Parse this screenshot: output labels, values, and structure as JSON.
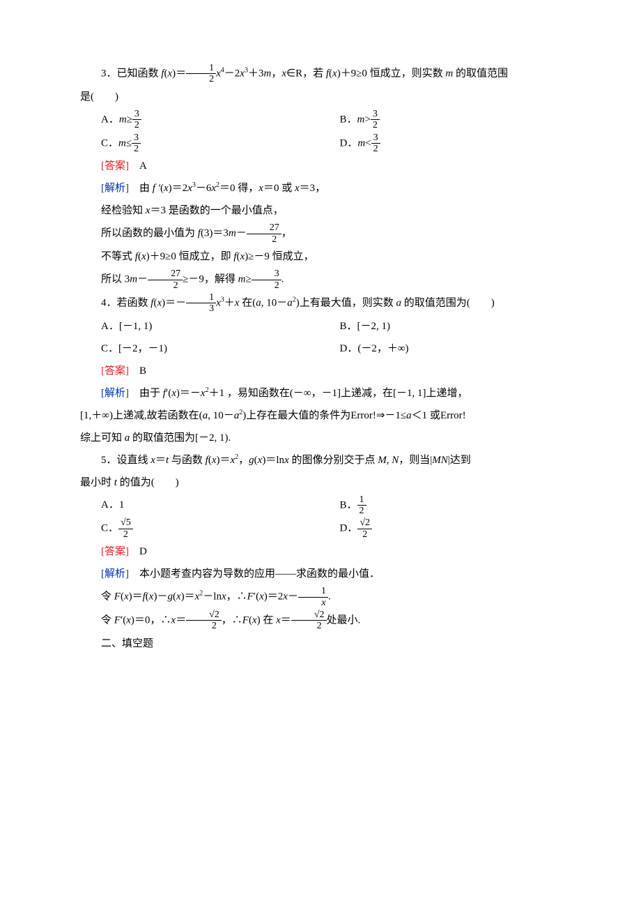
{
  "q3": {
    "stem_a": "3．已知函数 ",
    "stem_b": "f",
    "stem_c": "(",
    "stem_d": "x",
    "stem_e": ")＝",
    "frac1_num": "1",
    "frac1_den": "2",
    "stem_f": "x",
    "sup1": "4",
    "stem_g": "－2",
    "stem_h": "x",
    "sup2": "3",
    "stem_i": "＋3",
    "stem_j": "m",
    "stem_k": "，",
    "stem_l": "x",
    "stem_m": "∈R，若 ",
    "stem_n": "f",
    "stem_o": "(",
    "stem_p": "x",
    "stem_q": ")＋9≥0 恒成立，则实数 ",
    "stem_r": "m ",
    "stem_s": "的取值范围",
    "line2": "是(　　)",
    "A_pre": "A．",
    "A_m": "m",
    "A_rel": "≥",
    "A_num": "3",
    "A_den": "2",
    "B_pre": "B．",
    "B_m": "m",
    "B_rel": ">",
    "B_num": "3",
    "B_den": "2",
    "C_pre": "C．",
    "C_m": "m",
    "C_rel": "≤",
    "C_num": "3",
    "C_den": "2",
    "D_pre": "D．",
    "D_m": "m",
    "D_rel": "<",
    "D_num": "3",
    "D_den": "2",
    "ans_label": "[答案]",
    "ans": "　A",
    "sol_label": "[解析]",
    "sol1_a": "　由 ",
    "sol1_b": "f ′",
    "sol1_c": "(",
    "sol1_d": "x",
    "sol1_e": ")＝2",
    "sol1_f": "x",
    "sol1_sup1": "3",
    "sol1_g": "－6",
    "sol1_h": "x",
    "sol1_sup2": "2",
    "sol1_i": "＝0 得，",
    "sol1_j": "x",
    "sol1_k": "＝0 或 ",
    "sol1_l": "x",
    "sol1_m": "＝3，",
    "sol2_a": "经检验知 ",
    "sol2_b": "x",
    "sol2_c": "＝3 是函数的一个最小值点，",
    "sol3_a": "所以函数的最小值为 ",
    "sol3_b": "f",
    "sol3_c": "(3)＝3",
    "sol3_d": "m",
    "sol3_e": "－",
    "sol3_num": "27",
    "sol3_den": "2",
    "sol3_f": "，",
    "sol4_a": "不等式 ",
    "sol4_b": "f",
    "sol4_c": "(",
    "sol4_d": "x",
    "sol4_e": ")＋9≥0 恒成立，即 ",
    "sol4_f": "f",
    "sol4_g": "(",
    "sol4_h": "x",
    "sol4_i": ")≥－9 恒成立，",
    "sol5_a": "所以 3",
    "sol5_b": "m",
    "sol5_c": "－",
    "sol5_num": "27",
    "sol5_den": "2",
    "sol5_d": "≥－9，解得 ",
    "sol5_e": "m",
    "sol5_f": "≥",
    "sol5_num2": "3",
    "sol5_den2": "2",
    "sol5_g": "."
  },
  "q4": {
    "stem_a": "4．若函数 ",
    "stem_b": "f",
    "stem_c": "(",
    "stem_d": "x",
    "stem_e": ")＝－",
    "frac_num": "1",
    "frac_den": "3",
    "stem_f": "x",
    "sup1": "3",
    "stem_g": "＋",
    "stem_h": "x ",
    "stem_i": "在(",
    "stem_j": "a",
    "stem_k": ", 10－",
    "stem_l": "a",
    "sup2": "2",
    "stem_m": ")上有最大值，则实数 ",
    "stem_n": "a ",
    "stem_o": "的取值范围为(　　)",
    "A": "A．[－1, 1)",
    "B": "B．[－2, 1)",
    "C": "C．[－2，－1)",
    "D": "D．(－2，＋∞)",
    "ans_label": "[答案]",
    "ans": "　B",
    "sol_label": "[解析]",
    "sol1_a": "　由于 ",
    "sol1_b": "f",
    "sol1_c": "′(",
    "sol1_d": "x",
    "sol1_e": ")＝－",
    "sol1_f": "x",
    "sol1_sup": "2",
    "sol1_g": "＋1 ，易知函数在(－∞，－1]上递减，在[－1, 1]上递增，",
    "sol2_a": "[1,＋∞)上递减,故若函数在(",
    "sol2_b": "a",
    "sol2_c": ", 10－",
    "sol2_d": "a",
    "sol2_sup": "2",
    "sol2_e": ")上存在最大值的条件为",
    "sol2_err1": "Error!",
    "sol2_f": "⇒－1≤",
    "sol2_g": "a",
    "sol2_h": "＜1 或",
    "sol2_err2": "Error!",
    "sol3_a": "综上可知 ",
    "sol3_b": "a ",
    "sol3_c": "的取值范围为[－2, 1)."
  },
  "q5": {
    "stem_a": "5．设直线 ",
    "stem_b": "x",
    "stem_c": "＝",
    "stem_d": "t ",
    "stem_e": "与函数 ",
    "stem_f": "f",
    "stem_g": "(",
    "stem_h": "x",
    "stem_i": ")＝",
    "stem_j": "x",
    "sup1": "2",
    "stem_k": "，",
    "stem_l": "g",
    "stem_m": "(",
    "stem_n": "x",
    "stem_o": ")＝ln",
    "stem_p": "x ",
    "stem_q": "的图像分别交于点 ",
    "stem_r": "M",
    "stem_s": ", ",
    "stem_t": "N",
    "stem_u": "，则当|",
    "stem_v": "MN",
    "stem_w": "|达到",
    "line2_a": "最小时 ",
    "line2_b": "t ",
    "line2_c": "的值为(　　)",
    "A": "A．1",
    "B_pre": "B．",
    "B_num": "1",
    "B_den": "2",
    "C_pre": "C．",
    "C_num": "√5",
    "C_den": "2",
    "D_pre": "D．",
    "D_num": "√2",
    "D_den": "2",
    "ans_label": "[答案]",
    "ans": "　D",
    "sol_label": "[解析]",
    "sol1": "　本小题考查内容为导数的应用——求函数的最小值．",
    "sol2_a": "令 ",
    "sol2_b": "F",
    "sol2_c": "(",
    "sol2_d": "x",
    "sol2_e": ")＝",
    "sol2_f": "f",
    "sol2_g": "(",
    "sol2_h": "x",
    "sol2_i": ")－",
    "sol2_j": "g",
    "sol2_k": "(",
    "sol2_l": "x",
    "sol2_m": ")＝",
    "sol2_n": "x",
    "sol2_sup": "2",
    "sol2_o": "－ln",
    "sol2_p": "x",
    "sol2_q": "，∴",
    "sol2_r": "F",
    "sol2_s": "′(",
    "sol2_t": "x",
    "sol2_u": ")＝2",
    "sol2_v": "x",
    "sol2_w": "－",
    "sol2_num": "1",
    "sol2_den": "x",
    "sol2_x": ".",
    "sol3_a": "令 ",
    "sol3_b": "F",
    "sol3_c": "′(",
    "sol3_d": "x",
    "sol3_e": ")＝0，∴",
    "sol3_f": "x",
    "sol3_g": "＝",
    "sol3_num1": "√2",
    "sol3_den1": "2",
    "sol3_h": "，∴",
    "sol3_i": "F",
    "sol3_j": "(",
    "sol3_k": "x",
    "sol3_l": ") 在 ",
    "sol3_m": "x",
    "sol3_n": "＝",
    "sol3_num2": "√2",
    "sol3_den2": "2",
    "sol3_o": "处最小."
  },
  "footer": "二、填空题"
}
